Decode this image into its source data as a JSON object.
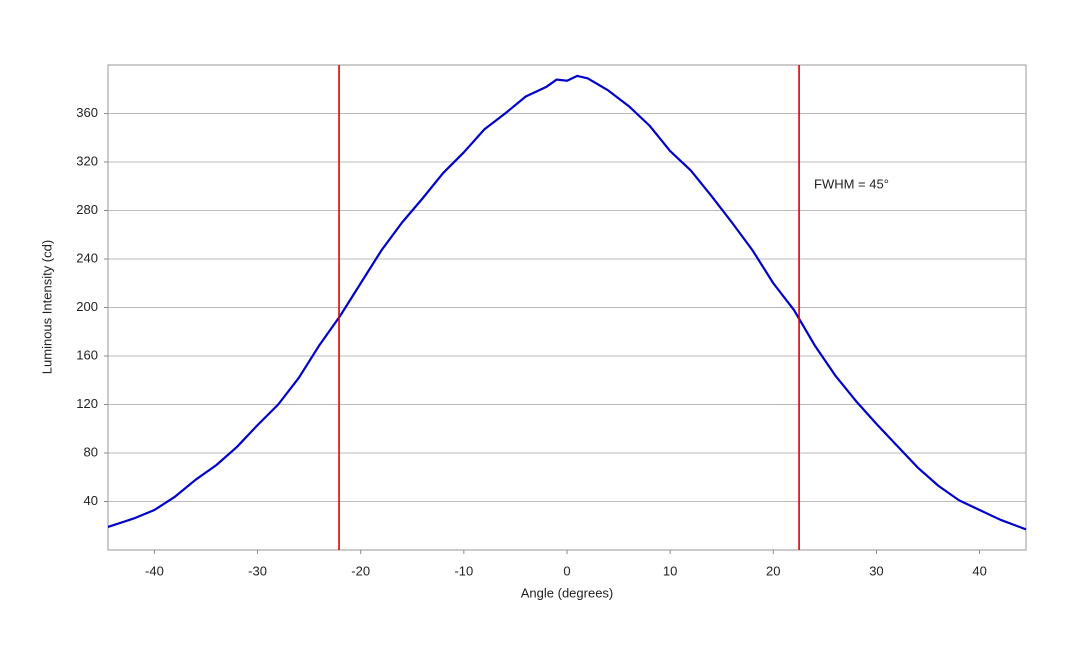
{
  "chart_data": {
    "type": "line",
    "xlabel": "Angle (degrees)",
    "ylabel": "Luminous Intensity (cd)",
    "x": [
      -44.5,
      -42,
      -40,
      -38,
      -36,
      -34,
      -32,
      -30,
      -28,
      -26,
      -24,
      -22,
      -20,
      -18,
      -16,
      -14,
      -12,
      -10,
      -8,
      -6,
      -4,
      -2,
      -1,
      0,
      1,
      2,
      4,
      6,
      8,
      10,
      12,
      14,
      16,
      18,
      20,
      22,
      24,
      26,
      28,
      30,
      32,
      34,
      36,
      38,
      40,
      42,
      44.5
    ],
    "series": [
      {
        "color": "#0000cc",
        "values": [
          19,
          26,
          33,
          44,
          58,
          70,
          85,
          103,
          120,
          142,
          169,
          193,
          220,
          247,
          270,
          290,
          311,
          328,
          347,
          360,
          374,
          382,
          388,
          387,
          391,
          389,
          379,
          366,
          350,
          329,
          313,
          292,
          270,
          247,
          220,
          198,
          169,
          144,
          123,
          104,
          86,
          68,
          53,
          41,
          33,
          25,
          17
        ]
      }
    ],
    "vlines": {
      "color": "#dd0000",
      "values": [
        -22.1,
        22.5
      ]
    },
    "annotation": "FWHM = 45°",
    "xlim": [
      -44.5,
      44.5
    ],
    "xticks": [
      -40,
      -30,
      -20,
      -10,
      0,
      10,
      20,
      30,
      40
    ],
    "ylim": [
      0,
      400
    ],
    "yticks": [
      40,
      80,
      120,
      160,
      200,
      240,
      280,
      320,
      360
    ],
    "grid": true
  }
}
